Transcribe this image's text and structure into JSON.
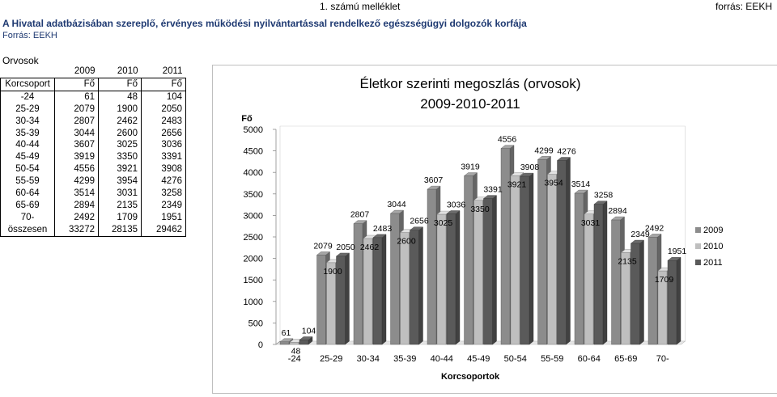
{
  "header": {
    "annex": "1. számú melléklet",
    "source_right": "forrás: EEKH",
    "title": "A Hivatal adatbázisában szereplő, érvényes működési nyilvántartással rendelkező egészségügyi dolgozók korfája",
    "source_left": "Forrás: EEKH"
  },
  "table": {
    "label": "Orvosok",
    "years": [
      "2009",
      "2010",
      "2011"
    ],
    "header": [
      "Korcsoport",
      "Fő",
      "Fő",
      "Fő"
    ],
    "rows": [
      [
        "-24",
        "61",
        "48",
        "104"
      ],
      [
        "25-29",
        "2079",
        "1900",
        "2050"
      ],
      [
        "30-34",
        "2807",
        "2462",
        "2483"
      ],
      [
        "35-39",
        "3044",
        "2600",
        "2656"
      ],
      [
        "40-44",
        "3607",
        "3025",
        "3036"
      ],
      [
        "45-49",
        "3919",
        "3350",
        "3391"
      ],
      [
        "50-54",
        "4556",
        "3921",
        "3908"
      ],
      [
        "55-59",
        "4299",
        "3954",
        "4276"
      ],
      [
        "60-64",
        "3514",
        "3031",
        "3258"
      ],
      [
        "65-69",
        "2894",
        "2135",
        "2349"
      ],
      [
        "70-",
        "2492",
        "1709",
        "1951"
      ],
      [
        "összesen",
        "33272",
        "28135",
        "29462"
      ]
    ]
  },
  "chart_data": {
    "type": "bar",
    "title": "Életkor szerinti megoszlás (orvosok)",
    "subtitle": "2009-2010-2011",
    "xlabel": "Korcsoportok",
    "ylabel": "Fő",
    "ylim": [
      0,
      5000
    ],
    "yticks": [
      0,
      500,
      1000,
      1500,
      2000,
      2500,
      3000,
      3500,
      4000,
      4500,
      5000
    ],
    "categories": [
      "-24",
      "25-29",
      "30-34",
      "35-39",
      "40-44",
      "45-49",
      "50-54",
      "55-59",
      "60-64",
      "65-69",
      "70-"
    ],
    "series": [
      {
        "name": "2009",
        "values": [
          61,
          2079,
          2807,
          3044,
          3607,
          3919,
          4556,
          4299,
          3514,
          2894,
          2492
        ],
        "color": "#8c8c8c"
      },
      {
        "name": "2010",
        "values": [
          48,
          1900,
          2462,
          2600,
          3025,
          3350,
          3921,
          3954,
          3031,
          2135,
          1709
        ],
        "color": "#bfbfbf"
      },
      {
        "name": "2011",
        "values": [
          104,
          2050,
          2483,
          2656,
          3036,
          3391,
          3908,
          4276,
          3258,
          2349,
          1951
        ],
        "color": "#5a5a5a"
      }
    ],
    "legend": "right",
    "grid": false,
    "style": "3d-bars"
  }
}
